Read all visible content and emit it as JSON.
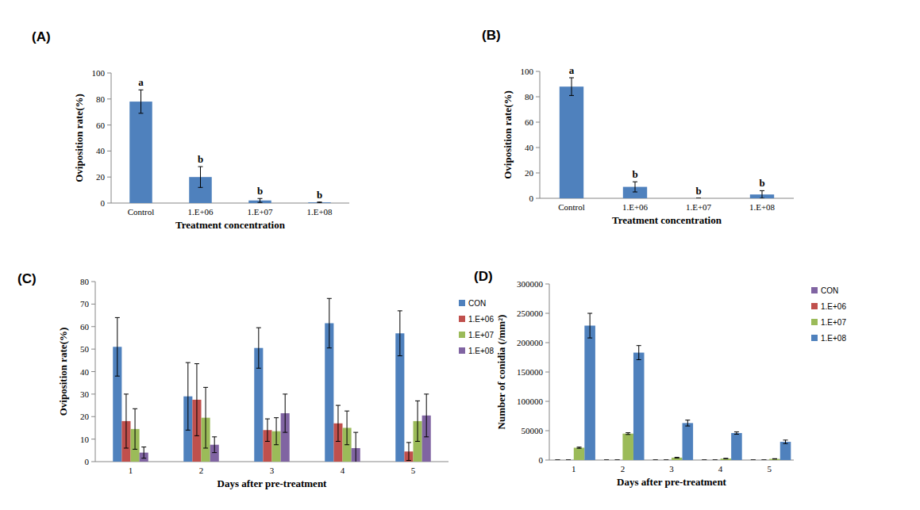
{
  "chart_data": [
    {
      "type": "bar",
      "title": "(A)",
      "x_label": "Treatment concentration",
      "y_label": "Oviposition rate(%)",
      "categories": [
        "Control",
        "1.E+06",
        "1.E+07",
        "1.E+08"
      ],
      "values": [
        78,
        20,
        2,
        0.5
      ],
      "errors": [
        9,
        8,
        1.5,
        0.3
      ],
      "annotations": [
        "a",
        "b",
        "b",
        "b"
      ],
      "color": "#4f81bd",
      "ylim": [
        0,
        100
      ],
      "yticks": [
        0,
        20,
        40,
        60,
        80,
        100
      ]
    },
    {
      "type": "bar",
      "title": "(B)",
      "x_label": "Treatment concentration",
      "y_label": "Oviposition rate(%)",
      "categories": [
        "Control",
        "1.E+06",
        "1.E+07",
        "1.E+08"
      ],
      "values": [
        88,
        9,
        0,
        3
      ],
      "errors": [
        7,
        4,
        0,
        3
      ],
      "annotations": [
        "a",
        "b",
        "b",
        "b"
      ],
      "color": "#4f81bd",
      "ylim": [
        0,
        100
      ],
      "yticks": [
        0,
        20,
        40,
        60,
        80,
        100
      ]
    },
    {
      "type": "bar",
      "title": "(C)",
      "x_label": "Days after pre-treatment",
      "y_label": "Oviposition rate(%)",
      "categories": [
        "1",
        "2",
        "3",
        "4",
        "5"
      ],
      "series": [
        {
          "name": "CON",
          "color": "#4f81bd",
          "values": [
            51,
            29,
            50.5,
            61.5,
            57
          ],
          "errors": [
            13,
            15,
            9,
            11,
            10
          ]
        },
        {
          "name": "1.E+06",
          "color": "#c0504d",
          "values": [
            18,
            27.5,
            14,
            17,
            4.5
          ],
          "errors": [
            12,
            16,
            5,
            8,
            4
          ]
        },
        {
          "name": "1.E+07",
          "color": "#9bbb59",
          "values": [
            14.5,
            19.5,
            13.5,
            15,
            18
          ],
          "errors": [
            9,
            13.5,
            6,
            7.5,
            9
          ]
        },
        {
          "name": "1.E+08",
          "color": "#8064a2",
          "values": [
            4,
            7.5,
            21.5,
            6,
            20.5
          ],
          "errors": [
            2.5,
            3.5,
            8.5,
            7,
            9.5
          ]
        }
      ],
      "ylim": [
        0,
        80
      ],
      "yticks": [
        0,
        10,
        20,
        30,
        40,
        50,
        60,
        70,
        80
      ],
      "legend": "right"
    },
    {
      "type": "bar",
      "title": "(D)",
      "x_label": "Days after pre-treatment",
      "y_label": "Number of conidia (/mm²)",
      "categories": [
        "1",
        "2",
        "3",
        "4",
        "5"
      ],
      "series": [
        {
          "name": "CON",
          "color": "#8064a2",
          "values": [
            0,
            0,
            0,
            0,
            0
          ],
          "errors": [
            0,
            0,
            0,
            0,
            0
          ]
        },
        {
          "name": "1.E+06",
          "color": "#c0504d",
          "values": [
            0,
            0,
            0,
            0,
            0
          ],
          "errors": [
            0,
            0,
            0,
            0,
            0
          ]
        },
        {
          "name": "1.E+07",
          "color": "#9bbb59",
          "values": [
            21000,
            45000,
            4000,
            2500,
            2000
          ],
          "errors": [
            1000,
            1500,
            500,
            300,
            300
          ]
        },
        {
          "name": "1.E+08",
          "color": "#4f81bd",
          "values": [
            229000,
            183000,
            63000,
            46000,
            31000
          ],
          "errors": [
            21000,
            12000,
            5000,
            2000,
            3000
          ]
        }
      ],
      "ylim": [
        0,
        300000
      ],
      "yticks": [
        0,
        50000,
        100000,
        150000,
        200000,
        250000,
        300000
      ],
      "legend": "right"
    }
  ]
}
